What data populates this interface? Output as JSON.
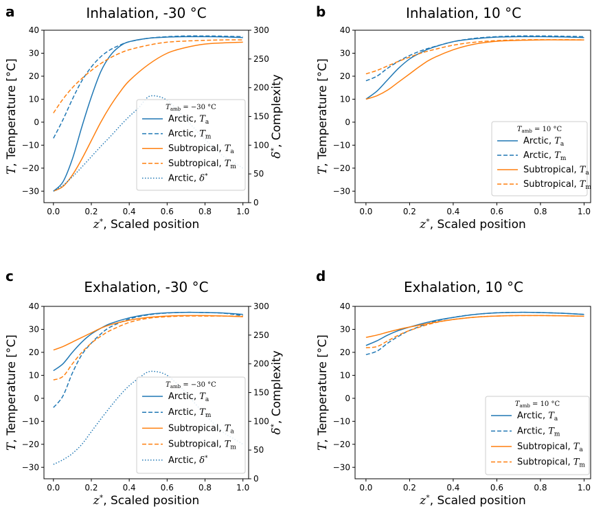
{
  "chart_data": [
    {
      "panel": "a",
      "title": "Inhalation, -30 °C",
      "type": "line",
      "xlabel": "z*, Scaled position",
      "ylabel": "T, Temperature [°C]",
      "y2label": "δ*, Complexity",
      "xlim": [
        -0.05,
        1.03
      ],
      "ylim": [
        -35,
        40
      ],
      "y2lim": [
        0,
        300
      ],
      "xticks": [
        "0.0",
        "0.2",
        "0.4",
        "0.6",
        "0.8",
        "1.0"
      ],
      "yticks": [
        "−30",
        "−20",
        "−10",
        "0",
        "10",
        "20",
        "30",
        "40"
      ],
      "y2ticks": [
        "0",
        "50",
        "100",
        "150",
        "200",
        "250",
        "300"
      ],
      "legend_title": "T_amb = −30 °C",
      "legend_loc": "lower right",
      "series": [
        {
          "name": "Arctic, Ta",
          "color": "#1f77b4",
          "dash": "solid",
          "axis": "left",
          "x": [
            0,
            0.05,
            0.1,
            0.15,
            0.2,
            0.25,
            0.3,
            0.35,
            0.4,
            0.5,
            0.6,
            0.7,
            0.8,
            0.9,
            1.0
          ],
          "y": [
            -30,
            -26,
            -16,
            -2,
            11,
            22,
            29,
            33,
            35,
            36.5,
            37,
            37.2,
            37.2,
            37.1,
            36.8
          ]
        },
        {
          "name": "Arctic, Tm",
          "color": "#1f77b4",
          "dash": "dashed",
          "axis": "left",
          "x": [
            0,
            0.05,
            0.1,
            0.15,
            0.2,
            0.25,
            0.3,
            0.35,
            0.4,
            0.5,
            0.6,
            0.7,
            0.8,
            0.9,
            1.0
          ],
          "y": [
            -7,
            1,
            10,
            18,
            24,
            28.5,
            31.5,
            33.5,
            35,
            36.5,
            37.2,
            37.5,
            37.5,
            37.4,
            37.2
          ]
        },
        {
          "name": "Subtropical, Ta",
          "color": "#ff7f0e",
          "dash": "solid",
          "axis": "left",
          "x": [
            0,
            0.05,
            0.1,
            0.15,
            0.2,
            0.25,
            0.3,
            0.35,
            0.4,
            0.5,
            0.6,
            0.7,
            0.8,
            0.9,
            1.0
          ],
          "y": [
            -30,
            -28,
            -23,
            -16,
            -8,
            0,
            7,
            13,
            18,
            25,
            30,
            32.5,
            34,
            34.5,
            34.8
          ]
        },
        {
          "name": "Subtropical, Tm",
          "color": "#ff7f0e",
          "dash": "dashed",
          "axis": "left",
          "x": [
            0,
            0.05,
            0.1,
            0.15,
            0.2,
            0.25,
            0.3,
            0.35,
            0.4,
            0.5,
            0.6,
            0.7,
            0.8,
            0.9,
            1.0
          ],
          "y": [
            4,
            10,
            15,
            19,
            22.5,
            25.5,
            28,
            30,
            31.5,
            33.5,
            34.8,
            35.3,
            35.6,
            35.8,
            35.8
          ]
        },
        {
          "name": "Arctic, δ*",
          "color": "#1f77b4",
          "dash": "dotted",
          "axis": "right",
          "x": [
            0,
            0.05,
            0.1,
            0.15,
            0.2,
            0.25,
            0.3,
            0.35,
            0.4,
            0.45,
            0.5,
            0.55,
            0.6,
            0.65,
            0.7,
            0.75,
            0.8,
            0.85,
            0.9,
            0.95,
            1.0
          ],
          "y": [
            20,
            30,
            45,
            62,
            80,
            98,
            115,
            133,
            150,
            165,
            184,
            185,
            178,
            163,
            145,
            127,
            110,
            95,
            80,
            70,
            60
          ]
        }
      ]
    },
    {
      "panel": "b",
      "title": "Inhalation, 10 °C",
      "type": "line",
      "xlabel": "z*, Scaled position",
      "ylabel": "T, Temperature [°C]",
      "xlim": [
        -0.05,
        1.03
      ],
      "ylim": [
        -35,
        40
      ],
      "xticks": [
        "0.0",
        "0.2",
        "0.4",
        "0.6",
        "0.8",
        "1.0"
      ],
      "yticks": [
        "−30",
        "−20",
        "−10",
        "0",
        "10",
        "20",
        "30",
        "40"
      ],
      "legend_title": "T_amb = 10 °C",
      "legend_loc": "lower right",
      "series": [
        {
          "name": "Arctic, Ta",
          "color": "#1f77b4",
          "dash": "solid",
          "x": [
            0,
            0.05,
            0.1,
            0.15,
            0.2,
            0.25,
            0.3,
            0.4,
            0.5,
            0.6,
            0.7,
            0.8,
            0.9,
            1.0
          ],
          "y": [
            10,
            13.5,
            18.5,
            23.5,
            27.5,
            30.2,
            32.3,
            35,
            36.3,
            37,
            37.2,
            37.2,
            37.1,
            36.8
          ]
        },
        {
          "name": "Arctic, Tm",
          "color": "#1f77b4",
          "dash": "dashed",
          "x": [
            0,
            0.05,
            0.1,
            0.15,
            0.2,
            0.25,
            0.3,
            0.4,
            0.5,
            0.6,
            0.7,
            0.8,
            0.9,
            1.0
          ],
          "y": [
            18,
            20,
            23.5,
            26.5,
            29,
            31,
            32.5,
            35,
            36.5,
            37.2,
            37.5,
            37.5,
            37.4,
            37.2
          ]
        },
        {
          "name": "Subtropical, Ta",
          "color": "#ff7f0e",
          "dash": "solid",
          "x": [
            0,
            0.05,
            0.1,
            0.15,
            0.2,
            0.25,
            0.3,
            0.4,
            0.5,
            0.6,
            0.7,
            0.8,
            0.9,
            1.0
          ],
          "y": [
            10,
            11.5,
            14,
            17.5,
            21,
            24.5,
            27.5,
            31.5,
            34,
            35.2,
            35.6,
            35.8,
            35.8,
            35.8
          ]
        },
        {
          "name": "Subtropical, Tm",
          "color": "#ff7f0e",
          "dash": "dashed",
          "x": [
            0,
            0.05,
            0.1,
            0.15,
            0.2,
            0.25,
            0.3,
            0.4,
            0.5,
            0.6,
            0.7,
            0.8,
            0.9,
            1.0
          ],
          "y": [
            21,
            22.5,
            24.5,
            26.5,
            28.3,
            30,
            31.3,
            33.5,
            34.8,
            35.5,
            35.8,
            35.9,
            35.9,
            35.8
          ]
        }
      ]
    },
    {
      "panel": "c",
      "title": "Exhalation, -30 °C",
      "type": "line",
      "xlabel": "z*, Scaled position",
      "ylabel": "T, Temperature [°C]",
      "y2label": "δ*, Complexity",
      "xlim": [
        -0.05,
        1.03
      ],
      "ylim": [
        -35,
        40
      ],
      "y2lim": [
        0,
        300
      ],
      "xticks": [
        "0.0",
        "0.2",
        "0.4",
        "0.6",
        "0.8",
        "1.0"
      ],
      "yticks": [
        "−30",
        "−20",
        "−10",
        "0",
        "10",
        "20",
        "30",
        "40"
      ],
      "y2ticks": [
        "0",
        "50",
        "100",
        "150",
        "200",
        "250",
        "300"
      ],
      "legend_title": "T_amb = −30 °C",
      "legend_loc": "lower right",
      "series": [
        {
          "name": "Arctic, Ta",
          "color": "#1f77b4",
          "dash": "solid",
          "axis": "left",
          "x": [
            0,
            0.05,
            0.1,
            0.15,
            0.2,
            0.25,
            0.3,
            0.4,
            0.5,
            0.6,
            0.7,
            0.8,
            0.9,
            1.0
          ],
          "y": [
            12,
            15,
            20,
            24.5,
            28,
            30.5,
            32.5,
            35,
            36.5,
            37.2,
            37.4,
            37.3,
            37.1,
            36.5
          ]
        },
        {
          "name": "Arctic, Tm",
          "color": "#1f77b4",
          "dash": "dashed",
          "axis": "left",
          "x": [
            0,
            0.05,
            0.1,
            0.15,
            0.2,
            0.25,
            0.3,
            0.4,
            0.5,
            0.6,
            0.7,
            0.8,
            0.9,
            1.0
          ],
          "y": [
            -4,
            1,
            11,
            19,
            24,
            28,
            31,
            34.5,
            36.3,
            37.1,
            37.4,
            37.3,
            37,
            36
          ]
        },
        {
          "name": "Subtropical, Ta",
          "color": "#ff7f0e",
          "dash": "solid",
          "axis": "left",
          "x": [
            0,
            0.05,
            0.1,
            0.15,
            0.2,
            0.25,
            0.3,
            0.4,
            0.5,
            0.6,
            0.7,
            0.8,
            0.9,
            1.0
          ],
          "y": [
            21,
            22.5,
            24.5,
            26.5,
            28.5,
            30.5,
            32,
            34,
            35.2,
            35.8,
            36,
            36,
            35.8,
            35.5
          ]
        },
        {
          "name": "Subtropical, Tm",
          "color": "#ff7f0e",
          "dash": "dashed",
          "axis": "left",
          "x": [
            0,
            0.05,
            0.1,
            0.15,
            0.2,
            0.25,
            0.3,
            0.4,
            0.5,
            0.6,
            0.7,
            0.8,
            0.9,
            1.0
          ],
          "y": [
            8,
            9.5,
            15,
            20,
            24,
            27,
            29.5,
            33,
            34.8,
            35.5,
            35.8,
            35.8,
            35.8,
            35.7
          ]
        },
        {
          "name": "Arctic, δ*",
          "color": "#1f77b4",
          "dash": "dotted",
          "axis": "right",
          "x": [
            0,
            0.05,
            0.1,
            0.15,
            0.2,
            0.25,
            0.3,
            0.35,
            0.4,
            0.45,
            0.5,
            0.55,
            0.6,
            0.65,
            0.7,
            0.75,
            0.8,
            0.85,
            0.9,
            0.95,
            1.0
          ],
          "y": [
            25,
            33,
            44,
            60,
            82,
            104,
            125,
            145,
            162,
            175,
            186,
            186,
            180,
            166,
            150,
            130,
            112,
            95,
            80,
            70,
            60
          ]
        }
      ]
    },
    {
      "panel": "d",
      "title": "Exhalation, 10 °C",
      "type": "line",
      "xlabel": "z*, Scaled position",
      "ylabel": "T, Temperature [°C]",
      "xlim": [
        -0.05,
        1.03
      ],
      "ylim": [
        -35,
        40
      ],
      "xticks": [
        "0.0",
        "0.2",
        "0.4",
        "0.6",
        "0.8",
        "1.0"
      ],
      "yticks": [
        "−30",
        "−20",
        "−10",
        "0",
        "10",
        "20",
        "30",
        "40"
      ],
      "legend_title": "T_amb = 10 °C",
      "legend_loc": "lower right",
      "series": [
        {
          "name": "Arctic, Ta",
          "color": "#1f77b4",
          "dash": "solid",
          "x": [
            0,
            0.05,
            0.1,
            0.15,
            0.2,
            0.3,
            0.4,
            0.5,
            0.6,
            0.7,
            0.8,
            0.9,
            1.0
          ],
          "y": [
            23,
            25,
            27.5,
            29.5,
            31,
            33.5,
            35.2,
            36.5,
            37.2,
            37.4,
            37.3,
            37,
            36.5
          ]
        },
        {
          "name": "Arctic, Tm",
          "color": "#1f77b4",
          "dash": "dashed",
          "x": [
            0,
            0.05,
            0.1,
            0.15,
            0.2,
            0.3,
            0.4,
            0.5,
            0.6,
            0.7,
            0.8,
            0.9,
            1.0
          ],
          "y": [
            19,
            20.5,
            24,
            27,
            29.5,
            33,
            35.2,
            36.5,
            37.2,
            37.4,
            37.3,
            37,
            36.5
          ]
        },
        {
          "name": "Subtropical, Ta",
          "color": "#ff7f0e",
          "dash": "solid",
          "x": [
            0,
            0.05,
            0.1,
            0.15,
            0.2,
            0.3,
            0.4,
            0.5,
            0.6,
            0.7,
            0.8,
            0.9,
            1.0
          ],
          "y": [
            26.5,
            27.5,
            28.8,
            30,
            31,
            32.8,
            34.3,
            35.3,
            35.8,
            36,
            36,
            35.9,
            35.7
          ]
        },
        {
          "name": "Subtropical, Tm",
          "color": "#ff7f0e",
          "dash": "dashed",
          "x": [
            0,
            0.05,
            0.1,
            0.15,
            0.2,
            0.3,
            0.4,
            0.5,
            0.6,
            0.7,
            0.8,
            0.9,
            1.0
          ],
          "y": [
            22,
            22.5,
            25,
            27.5,
            29.5,
            32.5,
            34.3,
            35.3,
            35.8,
            36,
            36,
            35.9,
            35.7
          ]
        }
      ]
    }
  ]
}
